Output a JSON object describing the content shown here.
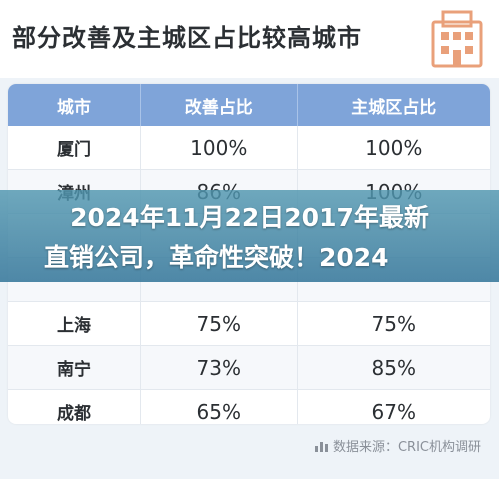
{
  "header": {
    "title": "部分改善及主城区占比较高城市"
  },
  "table": {
    "columns": [
      "城市",
      "改善占比",
      "主城区占比"
    ],
    "rows": [
      {
        "city": "厦门",
        "improve": "100%",
        "main": "100%"
      },
      {
        "city": "漳州",
        "improve": "86%",
        "main": "100%"
      },
      {
        "city": "",
        "improve": "",
        "main": ""
      },
      {
        "city": "",
        "improve": "",
        "main": ""
      },
      {
        "city": "上海",
        "improve": "75%",
        "main": "75%"
      },
      {
        "city": "南宁",
        "improve": "73%",
        "main": "85%"
      },
      {
        "city": "成都",
        "improve": "65%",
        "main": "67%"
      }
    ]
  },
  "source": {
    "text": "数据来源：CRIC机构调研"
  },
  "banner": {
    "line1": "2024年11月22日2017年最新",
    "line2": "直销公司，革命性突破！2024"
  },
  "colors": {
    "header_bg": "#7fa4d9",
    "banner": "#4f93ad",
    "logo": "#e9a07a"
  }
}
